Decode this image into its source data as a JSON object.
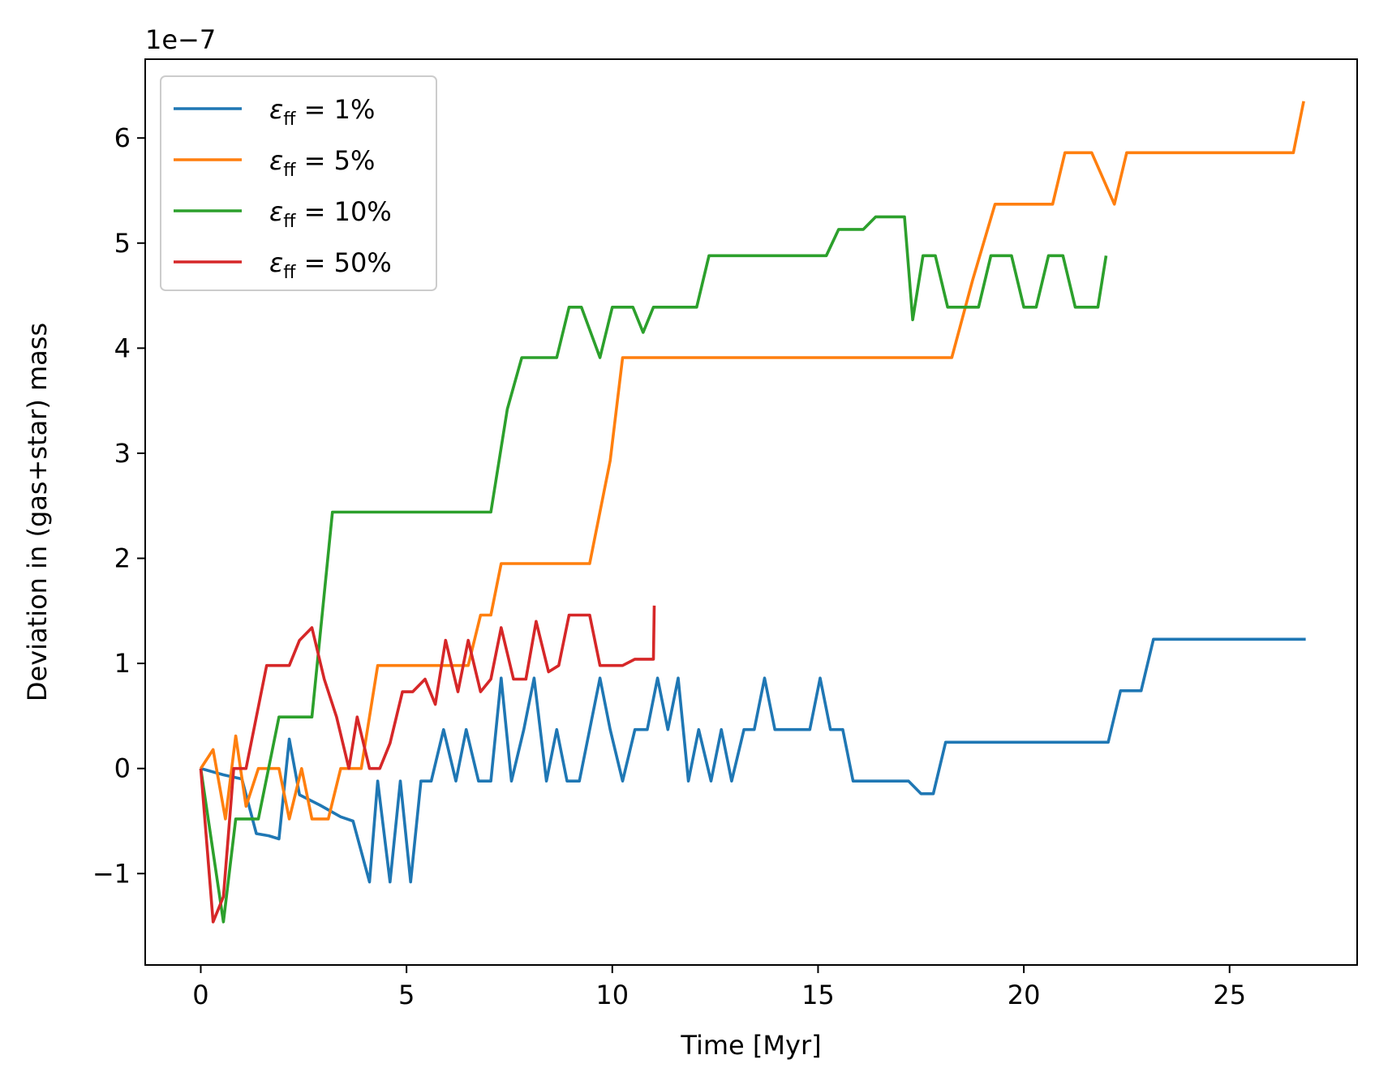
{
  "chart_data": {
    "type": "line",
    "xlabel": "Time [Myr]",
    "ylabel": "Deviation in (gas+star) mass",
    "y_offset_label": "1e−7",
    "xlim": [
      -1.35,
      28.1
    ],
    "ylim": [
      -1.87,
      6.75
    ],
    "xticks": [
      0,
      5,
      10,
      15,
      20,
      25
    ],
    "yticks": [
      -1,
      0,
      1,
      2,
      3,
      4,
      5,
      6
    ],
    "ytick_labels": [
      "−1",
      "0",
      "1",
      "2",
      "3",
      "4",
      "5",
      "6"
    ],
    "grid": false,
    "legend_position": "upper-left",
    "series": [
      {
        "name": "1%",
        "color": "#1f77b4",
        "points": [
          [
            0,
            0
          ],
          [
            0.55,
            -0.06
          ],
          [
            1,
            -0.1
          ],
          [
            1.35,
            -0.62
          ],
          [
            1.65,
            -0.64
          ],
          [
            1.9,
            -0.67
          ],
          [
            2.15,
            0.28
          ],
          [
            2.4,
            -0.25
          ],
          [
            2.9,
            -0.35
          ],
          [
            3.4,
            -0.46
          ],
          [
            3.7,
            -0.5
          ],
          [
            4.1,
            -1.08
          ],
          [
            4.3,
            -0.12
          ],
          [
            4.6,
            -1.08
          ],
          [
            4.85,
            -0.12
          ],
          [
            5.1,
            -1.08
          ],
          [
            5.35,
            -0.12
          ],
          [
            5.6,
            -0.12
          ],
          [
            5.9,
            0.37
          ],
          [
            6.2,
            -0.12
          ],
          [
            6.45,
            0.37
          ],
          [
            6.75,
            -0.12
          ],
          [
            7.05,
            -0.12
          ],
          [
            7.3,
            0.86
          ],
          [
            7.55,
            -0.12
          ],
          [
            7.85,
            0.37
          ],
          [
            8.1,
            0.86
          ],
          [
            8.4,
            -0.12
          ],
          [
            8.65,
            0.37
          ],
          [
            8.9,
            -0.12
          ],
          [
            9.2,
            -0.12
          ],
          [
            9.45,
            0.37
          ],
          [
            9.7,
            0.86
          ],
          [
            9.95,
            0.37
          ],
          [
            10.25,
            -0.12
          ],
          [
            10.55,
            0.37
          ],
          [
            10.85,
            0.37
          ],
          [
            11.1,
            0.86
          ],
          [
            11.35,
            0.37
          ],
          [
            11.6,
            0.86
          ],
          [
            11.85,
            -0.12
          ],
          [
            12.1,
            0.37
          ],
          [
            12.4,
            -0.12
          ],
          [
            12.65,
            0.37
          ],
          [
            12.9,
            -0.12
          ],
          [
            13.2,
            0.37
          ],
          [
            13.45,
            0.37
          ],
          [
            13.7,
            0.86
          ],
          [
            13.95,
            0.37
          ],
          [
            14.25,
            0.37
          ],
          [
            14.5,
            0.37
          ],
          [
            14.8,
            0.37
          ],
          [
            15.05,
            0.86
          ],
          [
            15.3,
            0.37
          ],
          [
            15.6,
            0.37
          ],
          [
            15.85,
            -0.12
          ],
          [
            16.5,
            -0.12
          ],
          [
            17.2,
            -0.12
          ],
          [
            17.5,
            -0.24
          ],
          [
            17.8,
            -0.24
          ],
          [
            18.1,
            0.25
          ],
          [
            19,
            0.25
          ],
          [
            20,
            0.25
          ],
          [
            21,
            0.25
          ],
          [
            22.05,
            0.25
          ],
          [
            22.35,
            0.74
          ],
          [
            22.85,
            0.74
          ],
          [
            23.15,
            1.23
          ],
          [
            24,
            1.23
          ],
          [
            25,
            1.23
          ],
          [
            26,
            1.23
          ],
          [
            26.85,
            1.23
          ]
        ]
      },
      {
        "name": "5%",
        "color": "#ff7f0e",
        "points": [
          [
            0,
            0
          ],
          [
            0.3,
            0.18
          ],
          [
            0.6,
            -0.48
          ],
          [
            0.85,
            0.31
          ],
          [
            1.1,
            -0.36
          ],
          [
            1.4,
            0
          ],
          [
            1.9,
            0
          ],
          [
            2.15,
            -0.48
          ],
          [
            2.45,
            0
          ],
          [
            2.7,
            -0.48
          ],
          [
            3.1,
            -0.48
          ],
          [
            3.4,
            0
          ],
          [
            3.9,
            0
          ],
          [
            4.3,
            0.98
          ],
          [
            5,
            0.98
          ],
          [
            6,
            0.98
          ],
          [
            6.5,
            0.98
          ],
          [
            6.8,
            1.46
          ],
          [
            7.05,
            1.46
          ],
          [
            7.3,
            1.95
          ],
          [
            8,
            1.95
          ],
          [
            9,
            1.95
          ],
          [
            9.45,
            1.95
          ],
          [
            9.95,
            2.93
          ],
          [
            10.25,
            3.91
          ],
          [
            12,
            3.91
          ],
          [
            14,
            3.91
          ],
          [
            16,
            3.91
          ],
          [
            18.25,
            3.91
          ],
          [
            18.75,
            4.64
          ],
          [
            19.3,
            5.37
          ],
          [
            20,
            5.37
          ],
          [
            20.7,
            5.37
          ],
          [
            21,
            5.86
          ],
          [
            21.65,
            5.86
          ],
          [
            22.2,
            5.37
          ],
          [
            22.5,
            5.86
          ],
          [
            24,
            5.86
          ],
          [
            26,
            5.86
          ],
          [
            26.55,
            5.86
          ],
          [
            26.8,
            6.35
          ]
        ]
      },
      {
        "name": "10%",
        "color": "#2ca02c",
        "points": [
          [
            0,
            0
          ],
          [
            0.55,
            -1.46
          ],
          [
            0.85,
            -0.48
          ],
          [
            1.4,
            -0.48
          ],
          [
            1.9,
            0.49
          ],
          [
            2.7,
            0.49
          ],
          [
            3.2,
            2.44
          ],
          [
            5,
            2.44
          ],
          [
            7.05,
            2.44
          ],
          [
            7.45,
            3.42
          ],
          [
            7.8,
            3.91
          ],
          [
            8.65,
            3.91
          ],
          [
            8.95,
            4.39
          ],
          [
            9.25,
            4.39
          ],
          [
            9.7,
            3.91
          ],
          [
            10,
            4.39
          ],
          [
            10.5,
            4.39
          ],
          [
            10.75,
            4.15
          ],
          [
            11,
            4.39
          ],
          [
            11.5,
            4.39
          ],
          [
            12.05,
            4.39
          ],
          [
            12.35,
            4.88
          ],
          [
            14,
            4.88
          ],
          [
            15.2,
            4.88
          ],
          [
            15.5,
            5.13
          ],
          [
            16.1,
            5.13
          ],
          [
            16.4,
            5.25
          ],
          [
            17.1,
            5.25
          ],
          [
            17.3,
            4.27
          ],
          [
            17.55,
            4.88
          ],
          [
            17.85,
            4.88
          ],
          [
            18.15,
            4.39
          ],
          [
            18.9,
            4.39
          ],
          [
            19.2,
            4.88
          ],
          [
            19.7,
            4.88
          ],
          [
            20,
            4.39
          ],
          [
            20.3,
            4.39
          ],
          [
            20.6,
            4.88
          ],
          [
            20.95,
            4.88
          ],
          [
            21.25,
            4.39
          ],
          [
            21.8,
            4.39
          ],
          [
            22,
            4.88
          ]
        ]
      },
      {
        "name": "50%",
        "color": "#d62728",
        "points": [
          [
            0,
            0
          ],
          [
            0.3,
            -1.46
          ],
          [
            0.55,
            -1.22
          ],
          [
            0.8,
            0
          ],
          [
            1.1,
            0
          ],
          [
            1.6,
            0.98
          ],
          [
            2.15,
            0.98
          ],
          [
            2.4,
            1.22
          ],
          [
            2.7,
            1.34
          ],
          [
            3,
            0.85
          ],
          [
            3.3,
            0.49
          ],
          [
            3.6,
            0
          ],
          [
            3.8,
            0.49
          ],
          [
            4.1,
            0
          ],
          [
            4.35,
            0
          ],
          [
            4.6,
            0.24
          ],
          [
            4.9,
            0.73
          ],
          [
            5.15,
            0.73
          ],
          [
            5.45,
            0.85
          ],
          [
            5.7,
            0.61
          ],
          [
            5.95,
            1.22
          ],
          [
            6.25,
            0.73
          ],
          [
            6.5,
            1.22
          ],
          [
            6.8,
            0.73
          ],
          [
            7.05,
            0.85
          ],
          [
            7.3,
            1.34
          ],
          [
            7.6,
            0.85
          ],
          [
            7.9,
            0.85
          ],
          [
            8.15,
            1.4
          ],
          [
            8.45,
            0.92
          ],
          [
            8.7,
            0.98
          ],
          [
            8.95,
            1.46
          ],
          [
            9.45,
            1.46
          ],
          [
            9.7,
            0.98
          ],
          [
            10.25,
            0.98
          ],
          [
            10.55,
            1.04
          ],
          [
            11,
            1.04
          ],
          [
            11.02,
            1.55
          ]
        ]
      }
    ]
  }
}
